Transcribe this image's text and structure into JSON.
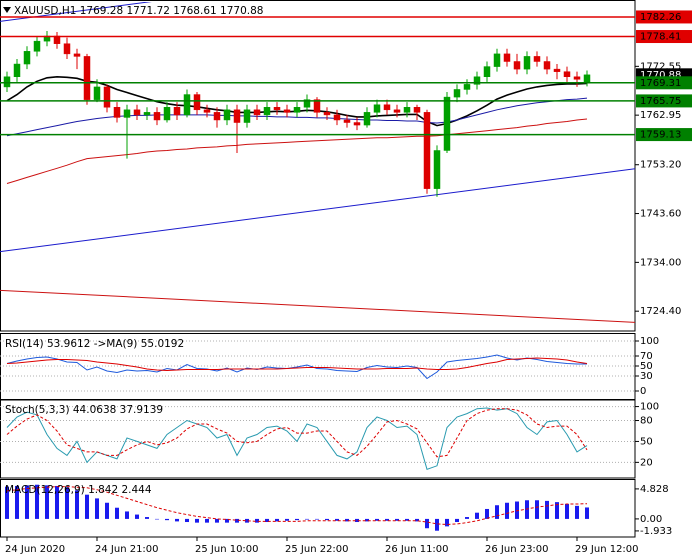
{
  "chart_data": [
    {
      "type": "candlestick",
      "title": "XAUUSD,H1  1769.28 1771.72 1768.61 1770.88",
      "categories": [
        "24 Jun 2020",
        null,
        null,
        null,
        null,
        null,
        null,
        null,
        null,
        "24 Jun 21:00",
        null,
        null,
        null,
        null,
        null,
        null,
        null,
        null,
        null,
        "25 Jun 10:00",
        null,
        null,
        null,
        null,
        null,
        null,
        null,
        null,
        "25 Jun 22:00",
        null,
        null,
        null,
        null,
        null,
        null,
        null,
        null,
        null,
        "26 Jun 11:00",
        null,
        null,
        null,
        null,
        null,
        null,
        null,
        null,
        null,
        "26 Jun 23:00",
        null,
        null,
        null,
        null,
        null,
        null,
        null,
        null,
        "29 Jun 12:00",
        null
      ],
      "open": [
        1768.5,
        1770.5,
        1773,
        1775.5,
        1777.5,
        1778.5,
        1777,
        1775,
        1774.5,
        1766,
        1768.5,
        1764.5,
        1762.5,
        1764,
        1763,
        1763.5,
        1762,
        1764.5,
        1763,
        1767,
        1764,
        1763.5,
        1762,
        1764,
        1761.5,
        1764,
        1763,
        1764.5,
        1764,
        1763.5,
        1764.5,
        1766,
        1763.5,
        1763,
        1762,
        1761.5,
        1761,
        1763.5,
        1765,
        1764,
        1763.5,
        1764.5,
        1763.5,
        1748.5,
        1756,
        1766.5,
        1768,
        1769,
        1770.5,
        1772.5,
        1775,
        1773.5,
        1772,
        1774.5,
        1773.5,
        1772,
        1771.5,
        1770.5,
        1769.28
      ],
      "high": [
        1771.5,
        1774,
        1776.5,
        1778.5,
        1779.5,
        1779.3,
        1778.2,
        1776,
        1775,
        1770,
        1769,
        1765.5,
        1765,
        1765,
        1764.5,
        1764.5,
        1765.5,
        1765.5,
        1768,
        1767.5,
        1765,
        1764.5,
        1765,
        1765,
        1765,
        1765,
        1765.5,
        1765.5,
        1765,
        1765.5,
        1767,
        1766.5,
        1764.5,
        1764,
        1763,
        1762.5,
        1764.5,
        1766,
        1766,
        1765,
        1765.5,
        1765,
        1764,
        1757,
        1767.5,
        1769,
        1770,
        1771.5,
        1773.5,
        1776,
        1776,
        1775,
        1775.5,
        1775.5,
        1774.5,
        1773,
        1772.5,
        1771.5,
        1771.72
      ],
      "low": [
        1767.5,
        1769.5,
        1772,
        1774.5,
        1776.5,
        1776,
        1774,
        1772,
        1765,
        1765.5,
        1763.5,
        1761.5,
        1754.4,
        1762,
        1762,
        1761,
        1761.5,
        1762,
        1762.5,
        1763,
        1762.5,
        1760.5,
        1761,
        1755.5,
        1760.5,
        1762,
        1762,
        1763,
        1762.5,
        1762.5,
        1763.5,
        1762.5,
        1762,
        1761,
        1760.5,
        1760,
        1760.5,
        1762.5,
        1763,
        1762.5,
        1762.5,
        1762,
        1747.5,
        1746.9,
        1755.5,
        1765.5,
        1767,
        1768,
        1769.5,
        1771.5,
        1772.5,
        1771,
        1771,
        1772.5,
        1771,
        1770,
        1769.5,
        1768.5,
        1768.61
      ],
      "close": [
        1770.5,
        1773,
        1775.5,
        1777.5,
        1778.5,
        1777,
        1775,
        1774.5,
        1766,
        1768.5,
        1764.5,
        1762.5,
        1764,
        1763,
        1763.5,
        1762,
        1764.5,
        1763,
        1767,
        1764,
        1763.5,
        1762,
        1764,
        1761.5,
        1764,
        1763,
        1764.5,
        1764,
        1763.5,
        1764.5,
        1766,
        1763.5,
        1763,
        1762,
        1761.5,
        1761,
        1763.5,
        1765,
        1764,
        1763.5,
        1764.5,
        1763.5,
        1748.5,
        1756,
        1766.5,
        1768,
        1769,
        1770.5,
        1772.5,
        1775,
        1773.5,
        1772,
        1774.5,
        1773.5,
        1772,
        1771.5,
        1770.5,
        1770,
        1770.88
      ],
      "up_color": "#00a000",
      "down_color": "#dd0000",
      "ylim": [
        1720.7,
        1785.2
      ],
      "yticks": [
        1772.55,
        1762.95,
        {
          "value": 1753.2,
          "label": "1753.20"
        },
        {
          "value": 1743.6,
          "label": "1743.60"
        },
        {
          "value": 1734,
          "label": "1734.00"
        },
        {
          "value": 1724.4,
          "label": "1724.40"
        }
      ],
      "grid": false,
      "lines": [
        {
          "color": "#000000",
          "values": [
            1765.8,
            1767,
            1768.5,
            1769.6,
            1770.3,
            1770.5,
            1770.4,
            1770.2,
            1769.6,
            1769.4,
            1768.8,
            1768,
            1767.4,
            1766.8,
            1766.2,
            1765.6,
            1765.2,
            1764.9,
            1764.8,
            1764.6,
            1764.3,
            1764,
            1763.8,
            1763.5,
            1763.5,
            1763.5,
            1763.6,
            1763.7,
            1763.6,
            1763.7,
            1763.9,
            1763.8,
            1763.6,
            1763.3,
            1762.9,
            1762.6,
            1762.6,
            1762.8,
            1762.9,
            1763,
            1763.1,
            1763.1,
            1761.7,
            1760.9,
            1761.3,
            1762,
            1762.8,
            1763.8,
            1764.9,
            1766.1,
            1766.9,
            1767.5,
            1768.1,
            1768.5,
            1768.8,
            1769,
            1769.1,
            1769.1,
            1769.2
          ]
        },
        {
          "color": "#1a1aa6",
          "values": [
            1758.9,
            1759.3,
            1759.7,
            1760.1,
            1760.5,
            1760.9,
            1761.3,
            1761.7,
            1762,
            1762.3,
            1762.5,
            1762.7,
            1762.8,
            1762.9,
            1762.9,
            1763,
            1763,
            1763,
            1763,
            1763,
            1763,
            1762.9,
            1762.9,
            1762.8,
            1762.8,
            1762.7,
            1762.7,
            1762.6,
            1762.6,
            1762.5,
            1762.5,
            1762.4,
            1762.4,
            1762.3,
            1762.2,
            1762.1,
            1762,
            1762,
            1761.9,
            1761.9,
            1761.8,
            1761.8,
            1761.5,
            1761.4,
            1761.6,
            1762,
            1762.5,
            1763,
            1763.5,
            1764,
            1764.4,
            1764.8,
            1765.1,
            1765.4,
            1765.6,
            1765.8,
            1766,
            1766.1,
            1766.3
          ]
        },
        {
          "color": "#cc1111",
          "values": [
            1749.5,
            1750.1,
            1750.7,
            1751.3,
            1751.9,
            1752.5,
            1753.1,
            1753.8,
            1754.4,
            1754.6,
            1754.8,
            1755,
            1755.2,
            1755.4,
            1755.7,
            1755.9,
            1756,
            1756.2,
            1756.3,
            1756.5,
            1756.6,
            1756.7,
            1756.9,
            1757,
            1757.2,
            1757.3,
            1757.4,
            1757.5,
            1757.6,
            1757.7,
            1757.8,
            1757.9,
            1758,
            1758.1,
            1758.2,
            1758.3,
            1758.4,
            1758.5,
            1758.5,
            1758.6,
            1758.7,
            1758.8,
            1758.8,
            1758.9,
            1759.1,
            1759.3,
            1759.5,
            1759.7,
            1759.9,
            1760.1,
            1760.3,
            1760.5,
            1760.8,
            1761,
            1761.3,
            1761.5,
            1761.7,
            1762,
            1762.2
          ]
        }
      ],
      "trendlines": [
        {
          "color": "#1a1acc",
          "values": [
            1736.1,
            1752.4
          ]
        },
        {
          "color": "#1a1acc",
          "values": [
            1781.4,
            1797.7
          ]
        },
        {
          "color": "#cc1111",
          "values": [
            1728.5,
            1722.2
          ]
        }
      ],
      "levels": [
        {
          "value": 1782.26,
          "color": "#e00000"
        },
        {
          "value": 1778.41,
          "color": "#e00000"
        },
        {
          "value": 1769.31,
          "color": "#008000"
        },
        {
          "value": 1765.75,
          "color": "#008000"
        },
        {
          "value": 1759.13,
          "color": "#008000"
        }
      ]
    },
    {
      "type": "line",
      "title": "RSI(14) 53.9612  ->MA(9) 55.0192",
      "ylim": [
        -16,
        112
      ],
      "yticks": [
        100,
        70,
        50,
        30,
        0
      ],
      "grid": true,
      "series": [
        {
          "color": "#1e5adc",
          "values": [
            55,
            60,
            64,
            67,
            68,
            64,
            58,
            57,
            42,
            48,
            40,
            37,
            42,
            40,
            41,
            38,
            45,
            42,
            53,
            45,
            44,
            40,
            46,
            38,
            46,
            43,
            48,
            46,
            45,
            48,
            52,
            45,
            44,
            41,
            40,
            39,
            47,
            51,
            48,
            47,
            50,
            47,
            25,
            38,
            58,
            61,
            63,
            65,
            68,
            72,
            66,
            62,
            66,
            63,
            59,
            57,
            55,
            54,
            53.9612
          ]
        },
        {
          "color": "#dd0000",
          "values": [
            55,
            56,
            58,
            60,
            62,
            63,
            63,
            62,
            61,
            58,
            56,
            54,
            51,
            48,
            44,
            42,
            41,
            42,
            43,
            43,
            43,
            43,
            44,
            44,
            44,
            44,
            44,
            44,
            45,
            46,
            47,
            47,
            47,
            46,
            45,
            44,
            44,
            44,
            45,
            45,
            45,
            46,
            44,
            43,
            43,
            44,
            47,
            51,
            55,
            58,
            63,
            64,
            65,
            66,
            65,
            64,
            62,
            58,
            55.0192
          ]
        }
      ]
    },
    {
      "type": "line",
      "title": "Stoch(5,3,3) 44.0638 37.9139",
      "ylim": [
        -1,
        108
      ],
      "yticks": [
        100,
        80,
        50,
        20
      ],
      "grid": true,
      "series": [
        {
          "color": "#2a9bb0",
          "values": [
            70,
            85,
            92,
            88,
            60,
            40,
            30,
            50,
            20,
            35,
            30,
            25,
            55,
            50,
            45,
            40,
            60,
            70,
            80,
            75,
            70,
            55,
            60,
            30,
            55,
            60,
            70,
            72,
            65,
            50,
            75,
            70,
            50,
            30,
            25,
            35,
            70,
            85,
            80,
            70,
            72,
            60,
            10,
            15,
            70,
            85,
            90,
            97,
            98,
            95,
            97,
            90,
            70,
            60,
            78,
            80,
            60,
            35,
            44.0638
          ]
        },
        {
          "color": "#dd0000",
          "dash": true,
          "values": [
            60,
            72,
            82,
            88,
            80,
            65,
            45,
            40,
            35,
            35,
            30,
            30,
            38,
            45,
            50,
            45,
            48,
            55,
            68,
            75,
            75,
            68,
            62,
            50,
            48,
            50,
            60,
            68,
            70,
            62,
            62,
            65,
            65,
            50,
            35,
            30,
            43,
            60,
            78,
            80,
            75,
            68,
            48,
            28,
            30,
            55,
            80,
            90,
            95,
            97,
            97,
            95,
            88,
            75,
            70,
            72,
            72,
            60,
            37.9139
          ]
        }
      ]
    },
    {
      "type": "bar",
      "title": "MACD(12,26,9) 1.842 2.444",
      "ylim": [
        -2.75,
        6.1
      ],
      "yticks": [
        4.828,
        {
          "value": 0,
          "label": "0.00"
        },
        -1.933
      ],
      "grid": false,
      "color": "#1a1aee",
      "values": [
        5.2,
        5.3,
        5.4,
        5.5,
        5.4,
        5.3,
        5.1,
        4.6,
        3.9,
        3.3,
        2.6,
        1.8,
        1.2,
        0.7,
        0.3,
        0,
        -0.2,
        -0.4,
        -0.5,
        -0.6,
        -0.6,
        -0.6,
        -0.6,
        -0.6,
        -0.6,
        -0.6,
        -0.5,
        -0.4,
        -0.3,
        -0.2,
        -0.1,
        -0.1,
        -0.2,
        -0.3,
        -0.4,
        -0.5,
        -0.4,
        -0.3,
        -0.3,
        -0.3,
        -0.3,
        -0.4,
        -1.5,
        -1.9,
        -1.2,
        -0.5,
        0.3,
        1.0,
        1.6,
        2.2,
        2.6,
        2.8,
        3.0,
        3.0,
        2.9,
        2.7,
        2.4,
        2.1,
        1.842
      ],
      "series": [
        {
          "color": "#dd0000",
          "dash": true,
          "values": [
            4.5,
            4.7,
            4.9,
            5.0,
            5.1,
            5.2,
            5.2,
            5.1,
            5.0,
            4.7,
            4.3,
            3.8,
            3.3,
            2.8,
            2.3,
            1.8,
            1.4,
            1.0,
            0.7,
            0.4,
            0.2,
            0,
            -0.1,
            -0.2,
            -0.3,
            -0.4,
            -0.4,
            -0.4,
            -0.4,
            -0.4,
            -0.3,
            -0.3,
            -0.3,
            -0.3,
            -0.3,
            -0.3,
            -0.3,
            -0.3,
            -0.3,
            -0.3,
            -0.3,
            -0.3,
            -0.5,
            -0.8,
            -0.9,
            -0.8,
            -0.6,
            -0.3,
            0.1,
            0.5,
            0.9,
            1.3,
            1.6,
            1.9,
            2.1,
            2.3,
            2.4,
            2.4,
            2.444
          ]
        }
      ]
    }
  ]
}
